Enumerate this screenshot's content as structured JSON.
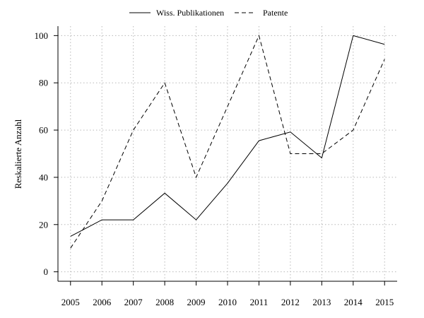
{
  "chart_data": {
    "type": "line",
    "title": "",
    "xlabel": "",
    "ylabel": "Reskalierte Anzahl",
    "x": [
      2005,
      2006,
      2007,
      2008,
      2009,
      2010,
      2011,
      2012,
      2013,
      2014,
      2015
    ],
    "x_ticks": [
      "2005",
      "2006",
      "2007",
      "2008",
      "2009",
      "2010",
      "2011",
      "2012",
      "2013",
      "2014",
      "2015"
    ],
    "y_ticks": [
      "0",
      "20",
      "40",
      "60",
      "80",
      "100"
    ],
    "xlim": [
      2004.6,
      2015.4
    ],
    "ylim": [
      -4,
      104
    ],
    "grid": true,
    "legend_position": "top",
    "series": [
      {
        "name": "Wiss. Publikationen",
        "style": "solid",
        "color": "#000000",
        "values": [
          15,
          22,
          22,
          33.3,
          22,
          37.5,
          55.5,
          59.2,
          48.2,
          100,
          96.3
        ]
      },
      {
        "name": "Patente",
        "style": "dashed",
        "color": "#000000",
        "values": [
          10,
          30,
          60,
          80,
          40,
          70,
          100,
          50,
          50,
          60,
          90
        ]
      }
    ]
  }
}
